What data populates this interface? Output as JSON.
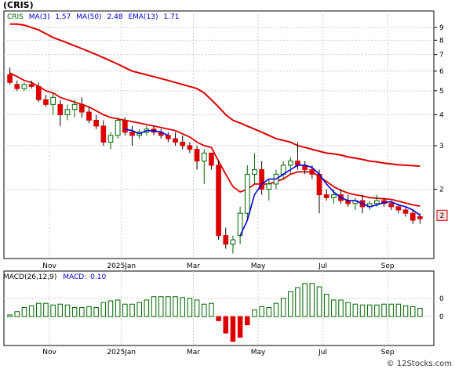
{
  "title": "(CRIS)",
  "watermark": "© 12Stocks.com",
  "colors": {
    "up": "#ffffff",
    "up_stroke": "#006600",
    "down": "#dd0000",
    "ma3": "#0000dd",
    "ma50": "#dd0000",
    "ema13": "#dd0000",
    "macd_bar": "#006600",
    "macd_neg": "#dd0000",
    "grid": "#cfcfcf"
  },
  "price_panel": {
    "legend": {
      "symbol": "CRIS",
      "ma3_label": "MA(3)",
      "ma3_value": "1.57",
      "ma50_label": "MA(50)",
      "ma50_value": "2.48",
      "ema13_label": "EMA(13)",
      "ema13_value": "1.71"
    },
    "y_ticks": [
      "9",
      "8",
      "7",
      "6",
      "5",
      "4",
      "3",
      "2"
    ],
    "y_tick_values": [
      9,
      8,
      7,
      6,
      5,
      4,
      3,
      2
    ],
    "last_price_label": "2",
    "last_price": 1.57,
    "y_scale": "log"
  },
  "macd_panel": {
    "legend": {
      "label": "MACD(26,12,9)",
      "signal_label": "MACD:",
      "signal_value": "0.10"
    },
    "y_ticks": [
      "0",
      "0"
    ]
  },
  "x_labels": [
    "Nov",
    "2025Jan",
    "Mar",
    "May",
    "Jul",
    "Sep"
  ],
  "chart_data": {
    "type": "candlestick",
    "scale": "log",
    "ylim": [
      1.05,
      10.5
    ],
    "x_labels": [
      "Nov",
      "2025Jan",
      "Mar",
      "May",
      "Jul",
      "Sep"
    ],
    "candles": [
      [
        5.8,
        6.2,
        5.3,
        5.4
      ],
      [
        5.3,
        5.5,
        5.0,
        5.1
      ],
      [
        5.1,
        5.4,
        5.0,
        5.3
      ],
      [
        5.3,
        5.5,
        5.1,
        5.2
      ],
      [
        5.2,
        5.4,
        4.5,
        4.6
      ],
      [
        4.6,
        4.8,
        4.3,
        4.4
      ],
      [
        4.4,
        4.9,
        4.0,
        4.7
      ],
      [
        4.4,
        4.6,
        3.6,
        4.0
      ],
      [
        4.0,
        4.4,
        3.8,
        4.2
      ],
      [
        4.2,
        4.6,
        3.9,
        4.4
      ],
      [
        4.4,
        4.7,
        3.9,
        4.1
      ],
      [
        4.1,
        4.3,
        3.7,
        3.8
      ],
      [
        3.8,
        4.0,
        3.5,
        3.6
      ],
      [
        3.6,
        3.8,
        3.0,
        3.1
      ],
      [
        3.1,
        3.4,
        2.9,
        3.3
      ],
      [
        3.3,
        3.9,
        3.2,
        3.8
      ],
      [
        3.8,
        3.9,
        3.3,
        3.4
      ],
      [
        3.4,
        3.6,
        3.0,
        3.3
      ],
      [
        3.3,
        3.5,
        3.2,
        3.4
      ],
      [
        3.4,
        3.6,
        3.3,
        3.5
      ],
      [
        3.5,
        3.6,
        3.3,
        3.4
      ],
      [
        3.4,
        3.5,
        3.2,
        3.3
      ],
      [
        3.3,
        3.4,
        3.1,
        3.2
      ],
      [
        3.2,
        3.4,
        3.0,
        3.1
      ],
      [
        3.1,
        3.3,
        2.9,
        3.0
      ],
      [
        3.0,
        3.1,
        2.8,
        2.9
      ],
      [
        2.9,
        3.0,
        2.4,
        2.6
      ],
      [
        2.6,
        2.9,
        2.1,
        2.8
      ],
      [
        2.8,
        2.8,
        2.4,
        2.5
      ],
      [
        2.5,
        2.6,
        1.25,
        1.3
      ],
      [
        1.3,
        1.4,
        1.15,
        1.2
      ],
      [
        1.2,
        1.3,
        1.1,
        1.25
      ],
      [
        1.3,
        1.7,
        1.2,
        1.6
      ],
      [
        1.6,
        2.5,
        1.5,
        2.3
      ],
      [
        2.3,
        2.8,
        2.1,
        2.4
      ],
      [
        2.4,
        2.6,
        1.9,
        2.0
      ],
      [
        2.0,
        2.2,
        1.8,
        2.1
      ],
      [
        2.1,
        2.4,
        2.0,
        2.3
      ],
      [
        2.3,
        2.6,
        2.2,
        2.5
      ],
      [
        2.5,
        2.7,
        2.3,
        2.6
      ],
      [
        2.6,
        3.1,
        2.4,
        2.5
      ],
      [
        2.5,
        2.6,
        2.3,
        2.4
      ],
      [
        2.4,
        2.5,
        2.2,
        2.3
      ],
      [
        2.3,
        2.4,
        1.6,
        1.9
      ],
      [
        1.9,
        2.0,
        1.8,
        1.85
      ],
      [
        1.85,
        2.0,
        1.75,
        1.9
      ],
      [
        1.9,
        2.0,
        1.75,
        1.8
      ],
      [
        1.8,
        1.9,
        1.7,
        1.75
      ],
      [
        1.75,
        1.85,
        1.65,
        1.8
      ],
      [
        1.8,
        1.9,
        1.6,
        1.7
      ],
      [
        1.7,
        1.8,
        1.65,
        1.75
      ],
      [
        1.75,
        1.9,
        1.7,
        1.8
      ],
      [
        1.8,
        1.85,
        1.7,
        1.75
      ],
      [
        1.75,
        1.8,
        1.65,
        1.7
      ],
      [
        1.7,
        1.75,
        1.6,
        1.65
      ],
      [
        1.65,
        1.7,
        1.55,
        1.6
      ],
      [
        1.6,
        1.65,
        1.45,
        1.5
      ],
      [
        1.55,
        1.6,
        1.45,
        1.52
      ]
    ],
    "ma3": [
      null,
      null,
      null,
      null,
      null,
      null,
      null,
      null,
      null,
      null,
      null,
      null,
      null,
      null,
      null,
      null,
      3.5,
      3.45,
      3.35,
      3.45,
      3.45,
      3.4,
      3.3,
      null,
      null,
      null,
      null,
      null,
      null,
      null,
      null,
      null,
      1.3,
      1.5,
      1.9,
      2.1,
      2.2,
      2.2,
      2.3,
      2.4,
      2.5,
      2.5,
      2.45,
      2.3,
      2.1,
      1.95,
      1.85,
      1.8,
      1.8,
      1.75,
      1.7,
      1.73,
      1.77,
      1.78,
      1.73,
      1.7,
      1.65,
      1.57
    ],
    "ema13": [
      5.9,
      5.7,
      5.5,
      5.4,
      5.2,
      5.0,
      4.9,
      4.7,
      4.6,
      4.5,
      4.4,
      4.3,
      4.15,
      4.0,
      3.9,
      3.85,
      3.8,
      3.75,
      3.7,
      3.65,
      3.6,
      3.55,
      3.5,
      3.45,
      3.35,
      3.25,
      3.1,
      3.0,
      2.95,
      2.6,
      2.3,
      2.05,
      1.95,
      2.0,
      2.1,
      2.1,
      2.1,
      2.15,
      2.2,
      2.3,
      2.35,
      2.35,
      2.35,
      2.25,
      2.15,
      2.05,
      1.98,
      1.93,
      1.9,
      1.88,
      1.85,
      1.84,
      1.83,
      1.82,
      1.79,
      1.76,
      1.73,
      1.71
    ],
    "ma50": [
      9.3,
      9.3,
      9.2,
      9.0,
      8.8,
      8.5,
      8.2,
      8.0,
      7.8,
      7.6,
      7.4,
      7.2,
      7.0,
      6.8,
      6.6,
      6.4,
      6.2,
      6.0,
      5.9,
      5.8,
      5.7,
      5.6,
      5.5,
      5.4,
      5.3,
      5.2,
      5.1,
      4.9,
      4.6,
      4.3,
      4.0,
      3.8,
      3.7,
      3.6,
      3.5,
      3.4,
      3.3,
      3.2,
      3.15,
      3.1,
      3.0,
      2.95,
      2.9,
      2.85,
      2.8,
      2.78,
      2.75,
      2.7,
      2.67,
      2.64,
      2.6,
      2.58,
      2.55,
      2.53,
      2.51,
      2.5,
      2.49,
      2.48
    ],
    "macd": [
      0.02,
      0.06,
      0.11,
      0.13,
      0.16,
      0.16,
      0.14,
      0.15,
      0.14,
      0.11,
      0.11,
      0.12,
      0.11,
      0.17,
      0.19,
      0.2,
      0.15,
      0.15,
      0.17,
      0.2,
      0.24,
      0.24,
      0.24,
      0.24,
      0.23,
      0.22,
      0.2,
      0.15,
      0.16,
      -0.05,
      -0.2,
      -0.3,
      -0.25,
      -0.1,
      0.08,
      0.12,
      0.11,
      0.16,
      0.22,
      0.3,
      0.35,
      0.4,
      0.4,
      0.36,
      0.27,
      0.2,
      0.2,
      0.17,
      0.15,
      0.14,
      0.14,
      0.14,
      0.15,
      0.15,
      0.15,
      0.13,
      0.12,
      0.1
    ],
    "macd_ylim": [
      -0.35,
      0.55
    ],
    "macd_ticks": [
      0.22,
      0.0
    ]
  }
}
